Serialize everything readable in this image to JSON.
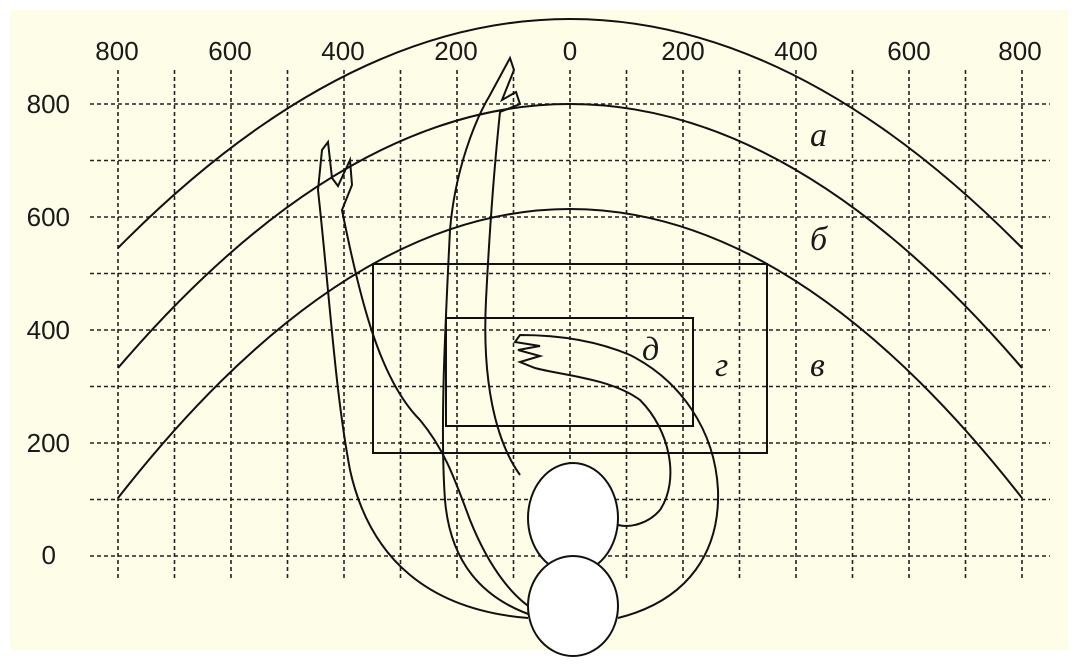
{
  "axes": {
    "x_ticks": [
      "800",
      "600",
      "400",
      "200",
      "0",
      "200",
      "400",
      "600",
      "800"
    ],
    "y_ticks": [
      "800",
      "600",
      "400",
      "200",
      "0"
    ]
  },
  "zones": {
    "a": "а",
    "b": "б",
    "v": "в",
    "g": "г",
    "d": "д"
  },
  "colors": {
    "background": "#fefde8",
    "ink": "#111111",
    "head_fill": "#ffffff"
  }
}
